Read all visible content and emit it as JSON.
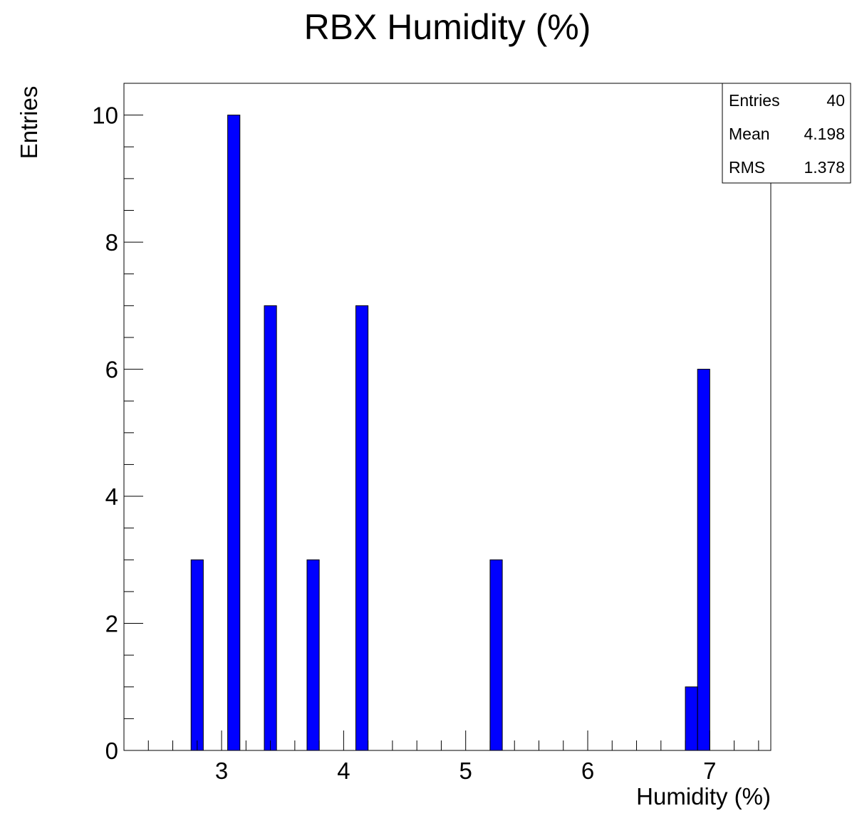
{
  "chart_data": {
    "type": "bar",
    "title": "RBX Humidity (%)",
    "xlabel": "Humidity (%)",
    "ylabel": "Entries",
    "xlim": [
      2.2,
      7.5
    ],
    "ylim": [
      0,
      10.5
    ],
    "x_ticks": [
      "3",
      "4",
      "5",
      "6",
      "7"
    ],
    "y_ticks": [
      "0",
      "2",
      "4",
      "6",
      "8",
      "10"
    ],
    "bar_color": "#0000ff",
    "bins": [
      {
        "x0": 2.75,
        "x1": 2.85,
        "value": 3
      },
      {
        "x0": 3.05,
        "x1": 3.15,
        "value": 10
      },
      {
        "x0": 3.35,
        "x1": 3.45,
        "value": 7
      },
      {
        "x0": 3.7,
        "x1": 3.8,
        "value": 3
      },
      {
        "x0": 4.1,
        "x1": 4.2,
        "value": 7
      },
      {
        "x0": 5.2,
        "x1": 5.3,
        "value": 3
      },
      {
        "x0": 6.8,
        "x1": 6.9,
        "value": 1
      },
      {
        "x0": 6.9,
        "x1": 7.0,
        "value": 6
      }
    ],
    "stats": {
      "position": "top-right",
      "rows": [
        {
          "label": "Entries",
          "value": "40"
        },
        {
          "label": "Mean",
          "value": "4.198"
        },
        {
          "label": "RMS",
          "value": "1.378"
        }
      ]
    },
    "grid": false
  }
}
